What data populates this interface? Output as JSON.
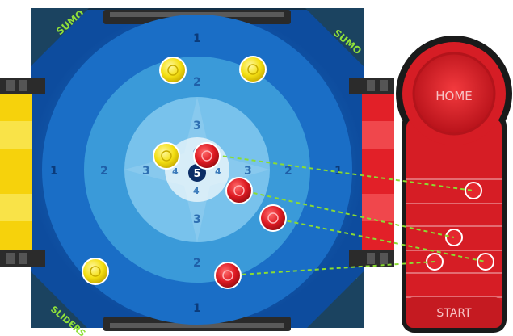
{
  "board": {
    "brand_text": "SUMO",
    "brand_sub": "SLIDERS",
    "center_score": "5",
    "outer_numbers": [
      "1",
      "1",
      "1",
      "1"
    ],
    "mid_numbers": [
      "2",
      "2",
      "2",
      "2"
    ],
    "inner_numbers": [
      "3",
      "3",
      "3",
      "3"
    ],
    "core_numbers": [
      "4",
      "4",
      "4",
      "4"
    ]
  },
  "yellow_pucks": [
    {
      "label": "yellow-puck-1"
    },
    {
      "label": "yellow-puck-2"
    },
    {
      "label": "yellow-puck-3"
    },
    {
      "label": "yellow-puck-4"
    }
  ],
  "red_pucks": [
    {
      "label": "red-puck-1"
    },
    {
      "label": "red-puck-2"
    },
    {
      "label": "red-puck-3"
    },
    {
      "label": "red-puck-4"
    }
  ],
  "launcher": {
    "home_label": "HOME",
    "start_label": "START"
  },
  "colors": {
    "board_dark": "#0e3f8a",
    "board_mid": "#1f78cf",
    "board_light": "#5fb6ea",
    "core": "#cfe8f7",
    "yellow": "#f7e311",
    "red": "#e3202a",
    "guide": "#8bdc32"
  }
}
